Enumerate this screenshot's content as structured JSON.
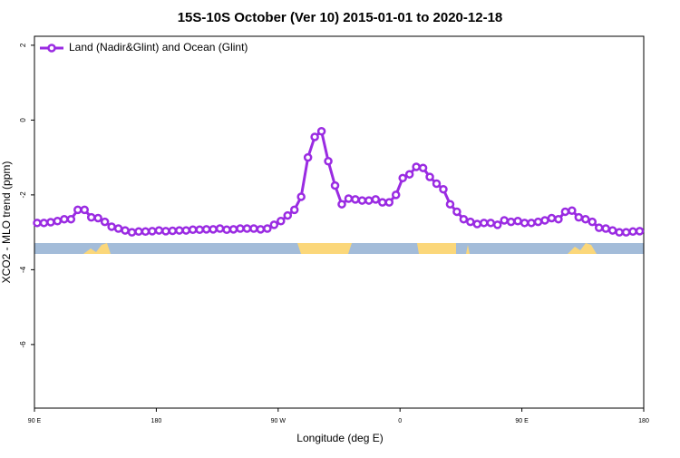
{
  "chart_data": {
    "type": "line",
    "title": "15S-10S October (Ver 10)   2015-01-01 to 2020-12-18",
    "xlabel": "Longitude (deg E)",
    "ylabel": "XCO2 - MLO trend (ppm)",
    "xlim": [
      90,
      540
    ],
    "ylim": [
      -7.7,
      2.24
    ],
    "xticks": [
      {
        "value": 90,
        "label": "90 E"
      },
      {
        "value": 180,
        "label": "180"
      },
      {
        "value": 270,
        "label": "90 W"
      },
      {
        "value": 360,
        "label": "0"
      },
      {
        "value": 450,
        "label": "90 E"
      },
      {
        "value": 540,
        "label": "180"
      }
    ],
    "yticks": [
      -6,
      -4,
      -2,
      0,
      2
    ],
    "legend": "top-left",
    "x": [
      92,
      97,
      102,
      107,
      112,
      117,
      122,
      127,
      132,
      137,
      142,
      147,
      152,
      157,
      162,
      167,
      172,
      177,
      182,
      187,
      192,
      197,
      202,
      207,
      212,
      217,
      222,
      227,
      232,
      237,
      242,
      247,
      252,
      257,
      262,
      267,
      272,
      277,
      282,
      287,
      292,
      297,
      302,
      307,
      312,
      317,
      322,
      327,
      332,
      337,
      342,
      347,
      352,
      357,
      362,
      367,
      372,
      377,
      382,
      387,
      392,
      397,
      402,
      407,
      412,
      417,
      422,
      427,
      432,
      437,
      442,
      447,
      452,
      457,
      462,
      467,
      472,
      477,
      482,
      487,
      492,
      497,
      502,
      507,
      512,
      517,
      522,
      527,
      532,
      537
    ],
    "series": [
      {
        "name": "Land (Nadir&Glint) and Ocean (Glint)",
        "color": "#9a2be2",
        "values": [
          -2.75,
          -2.75,
          -2.73,
          -2.7,
          -2.65,
          -2.65,
          -2.4,
          -2.4,
          -2.6,
          -2.62,
          -2.72,
          -2.85,
          -2.9,
          -2.95,
          -3.0,
          -2.98,
          -2.98,
          -2.97,
          -2.95,
          -2.97,
          -2.96,
          -2.95,
          -2.95,
          -2.93,
          -2.93,
          -2.92,
          -2.92,
          -2.9,
          -2.93,
          -2.92,
          -2.9,
          -2.9,
          -2.9,
          -2.92,
          -2.9,
          -2.8,
          -2.7,
          -2.55,
          -2.4,
          -2.05,
          -1.0,
          -0.45,
          -0.3,
          -1.1,
          -1.75,
          -2.25,
          -2.1,
          -2.12,
          -2.15,
          -2.15,
          -2.12,
          -2.2,
          -2.2,
          -2.0,
          -1.55,
          -1.45,
          -1.25,
          -1.28,
          -1.52,
          -1.7,
          -1.85,
          -2.25,
          -2.45,
          -2.65,
          -2.72,
          -2.78,
          -2.75,
          -2.75,
          -2.8,
          -2.68,
          -2.72,
          -2.7,
          -2.75,
          -2.75,
          -2.72,
          -2.68,
          -2.62,
          -2.65,
          -2.45,
          -2.42,
          -2.6,
          -2.65,
          -2.72,
          -2.88,
          -2.9,
          -2.95,
          -3.0,
          -3.0,
          -2.98,
          -2.97
        ]
      }
    ]
  }
}
